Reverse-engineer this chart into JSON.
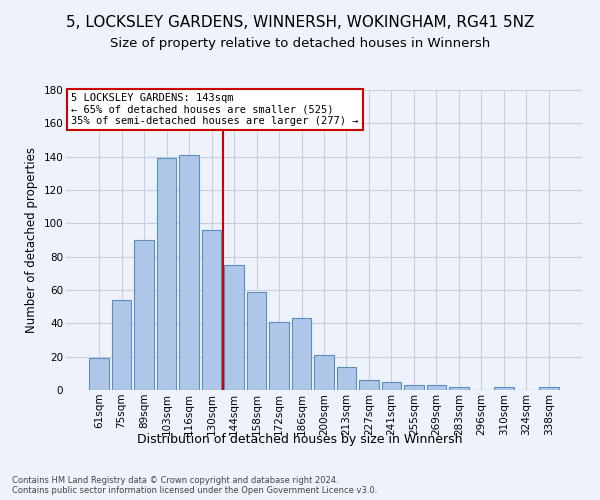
{
  "title1": "5, LOCKSLEY GARDENS, WINNERSH, WOKINGHAM, RG41 5NZ",
  "title2": "Size of property relative to detached houses in Winnersh",
  "xlabel": "Distribution of detached houses by size in Winnersh",
  "ylabel": "Number of detached properties",
  "categories": [
    "61sqm",
    "75sqm",
    "89sqm",
    "103sqm",
    "116sqm",
    "130sqm",
    "144sqm",
    "158sqm",
    "172sqm",
    "186sqm",
    "200sqm",
    "213sqm",
    "227sqm",
    "241sqm",
    "255sqm",
    "269sqm",
    "283sqm",
    "296sqm",
    "310sqm",
    "324sqm",
    "338sqm"
  ],
  "values": [
    19,
    54,
    90,
    139,
    141,
    96,
    75,
    59,
    41,
    43,
    21,
    14,
    6,
    5,
    3,
    3,
    2,
    0,
    2,
    0,
    2
  ],
  "bar_color": "#aec6e8",
  "bar_edge_color": "#5a8fc0",
  "vline_x_index": 5.5,
  "vline_color": "#cc0000",
  "annotation_line1": "5 LOCKSLEY GARDENS: 143sqm",
  "annotation_line2": "← 65% of detached houses are smaller (525)",
  "annotation_line3": "35% of semi-detached houses are larger (277) →",
  "annotation_box_color": "#ffffff",
  "annotation_box_edge_color": "#cc0000",
  "ylim": [
    0,
    180
  ],
  "yticks": [
    0,
    20,
    40,
    60,
    80,
    100,
    120,
    140,
    160,
    180
  ],
  "title1_fontsize": 11,
  "title2_fontsize": 9.5,
  "xlabel_fontsize": 9,
  "ylabel_fontsize": 8.5,
  "tick_fontsize": 7.5,
  "annotation_fontsize": 7.5,
  "footer_text": "Contains HM Land Registry data © Crown copyright and database right 2024.\nContains public sector information licensed under the Open Government Licence v3.0.",
  "background_color": "#eef2fa",
  "plot_background_color": "#eef2fa",
  "grid_color": "#c8cfe0"
}
